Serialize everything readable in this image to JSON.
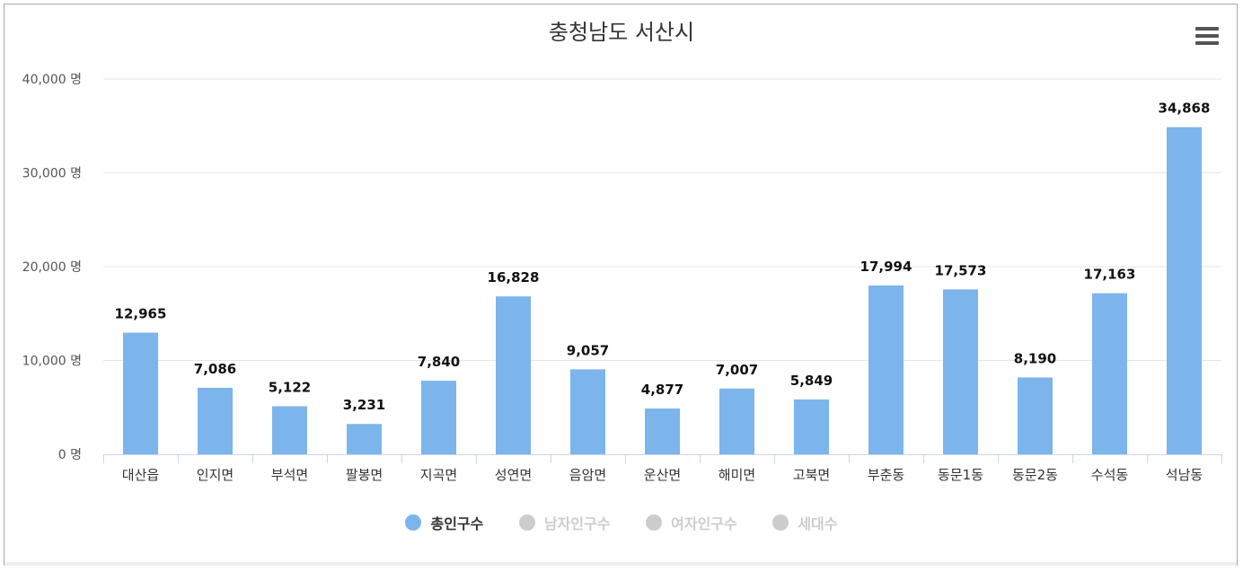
{
  "chart_data": {
    "type": "bar",
    "title": "충청남도 서산시",
    "categories": [
      "대산읍",
      "인지면",
      "부석면",
      "팔봉면",
      "지곡면",
      "성연면",
      "음암면",
      "운산면",
      "해미면",
      "고북면",
      "부춘동",
      "동문1동",
      "동문2동",
      "수석동",
      "석남동"
    ],
    "series": [
      {
        "name": "총인구수",
        "values": [
          12965,
          7086,
          5122,
          3231,
          7840,
          16828,
          9057,
          4877,
          7007,
          5849,
          17994,
          17573,
          8190,
          17163,
          34868
        ],
        "value_labels": [
          "12,965",
          "7,086",
          "5,122",
          "3,231",
          "7,840",
          "16,828",
          "9,057",
          "4,877",
          "7,007",
          "5,849",
          "17,994",
          "17,573",
          "8,190",
          "17,163",
          "34,868"
        ]
      }
    ],
    "ylim": [
      0,
      40000
    ],
    "y_ticks": [
      0,
      10000,
      20000,
      30000,
      40000
    ],
    "y_tick_labels": [
      "0 명",
      "10,000 명",
      "20,000 명",
      "30,000 명",
      "40,000 명"
    ],
    "xlabel": "",
    "ylabel": "",
    "grid": true,
    "legend_position": "bottom-center",
    "bar_color": "#7cb5ec"
  },
  "legend": [
    {
      "label": "총인구수",
      "active": true,
      "color": "#7cb5ec"
    },
    {
      "label": "남자인구수",
      "active": false,
      "color": "#cccccc"
    },
    {
      "label": "여자인구수",
      "active": false,
      "color": "#cccccc"
    },
    {
      "label": "세대수",
      "active": false,
      "color": "#cccccc"
    }
  ],
  "menu_icon": "hamburger-menu-icon"
}
